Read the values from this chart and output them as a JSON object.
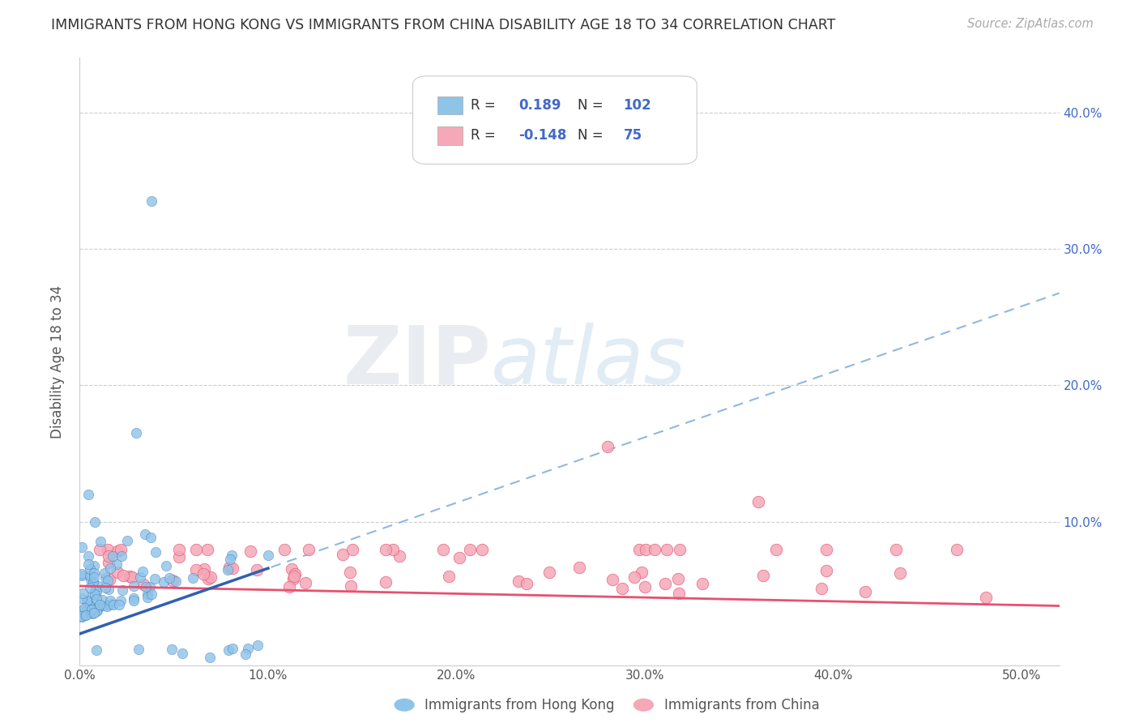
{
  "title": "IMMIGRANTS FROM HONG KONG VS IMMIGRANTS FROM CHINA DISABILITY AGE 18 TO 34 CORRELATION CHART",
  "source": "Source: ZipAtlas.com",
  "ylabel": "Disability Age 18 to 34",
  "xlim": [
    0.0,
    0.52
  ],
  "ylim": [
    -0.005,
    0.44
  ],
  "xticks": [
    0.0,
    0.1,
    0.2,
    0.3,
    0.4,
    0.5
  ],
  "xtick_labels": [
    "0.0%",
    "10.0%",
    "20.0%",
    "30.0%",
    "40.0%",
    "50.0%"
  ],
  "yticks": [
    0.0,
    0.1,
    0.2,
    0.3,
    0.4
  ],
  "ytick_labels_right": [
    "",
    "10.0%",
    "20.0%",
    "30.0%",
    "40.0%"
  ],
  "hk_color": "#8EC4E8",
  "china_color": "#F4A8B8",
  "hk_line_color": "#3060B0",
  "china_line_color": "#E85070",
  "hk_dashed_color": "#90B8E0",
  "hk_R": 0.189,
  "hk_N": 102,
  "china_R": -0.148,
  "china_N": 75,
  "watermark_zip": "ZIP",
  "watermark_atlas": "atlas",
  "background_color": "#ffffff",
  "grid_color": "#cccccc",
  "title_color": "#333333",
  "accent_color": "#4169C8",
  "tick_value_color": "#4169C8"
}
